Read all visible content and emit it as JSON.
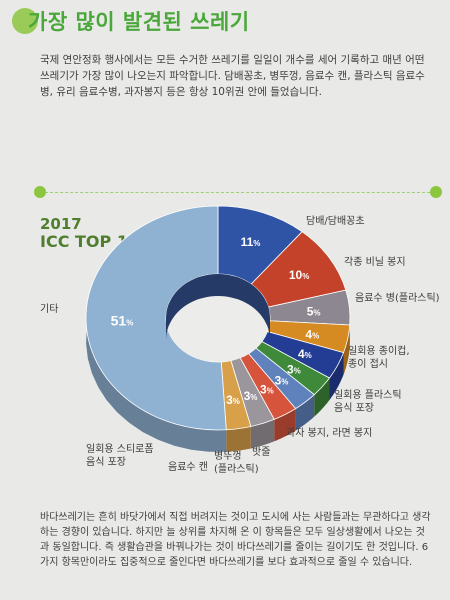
{
  "header": {
    "title": "가장 많이 발견된 쓰레기"
  },
  "intro": {
    "text": "국제 연안정화 행사에서는 모든 수거한 쓰레기를 일일이 개수를 세어 기록하고 매년 어떤 쓰레기가 가장 많이 나오는지 파악합니다. 담배꽁초, 병뚜껑, 음료수 캔, 플라스틱 음료수병, 유리 음료수병, 과자봉지 등은 항상 10위권 안에 들었습니다."
  },
  "chart_data": {
    "type": "pie",
    "donut": true,
    "title_year": "2017",
    "title": "ICC TOP 10",
    "unit": "%",
    "slices": [
      {
        "label": "담배/담배꽁초",
        "value": 11,
        "color": "#2f54a6"
      },
      {
        "label": "각종 비닐 봉지",
        "value": 10,
        "color": "#c44229"
      },
      {
        "label": "음료수 병(플라스틱)",
        "value": 5,
        "color": "#8d8791"
      },
      {
        "label": "일회용 종이컵, 종이 접시",
        "value": 4,
        "color": "#d68a22"
      },
      {
        "label": "일회용 플라스틱 음식 포장",
        "value": 4,
        "color": "#243d94"
      },
      {
        "label": "과자 봉지, 라면 봉지",
        "value": 3,
        "color": "#3f8a3a"
      },
      {
        "label": "밧줄",
        "value": 3,
        "color": "#5f82bd"
      },
      {
        "label": "병뚜껑 (플라스틱)",
        "value": 3,
        "color": "#d6543c"
      },
      {
        "label": "음료수 캔",
        "value": 3,
        "color": "#9b969c"
      },
      {
        "label": "일회용 스티로폼 음식 포장",
        "value": 3,
        "color": "#d9a04a"
      },
      {
        "label": "기타",
        "value": 51,
        "color": "#8fb1d2"
      }
    ]
  },
  "outro": {
    "text": "바다쓰레기는 흔히 바닷가에서 직접 버려지는 것이고 도시에 사는 사람들과는 무관하다고 생각하는 경향이 있습니다. 하지만 늘 상위를 차지해 온 이 항목들은 모두 일상생활에서 나오는 것과 동일합니다. 즉 생활습관을 바꿔나가는 것이 바다쓰레기를 줄이는 길이기도 한 것입니다. 6가지 항목만이라도 집중적으로 줄인다면 바다쓰레기를 보다 효과적으로 줄일 수 있습니다."
  }
}
